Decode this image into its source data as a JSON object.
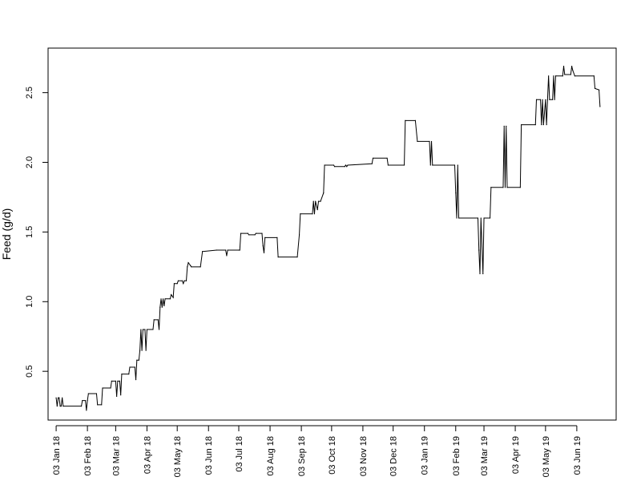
{
  "chart_data": {
    "type": "line",
    "title": "",
    "xlabel": "",
    "ylabel": "Feed (g/d)",
    "grid": false,
    "legend": "none",
    "line_color": "#000000",
    "xlim": [
      "2017-12-26",
      "2019-07-12"
    ],
    "ylim": [
      0.15,
      2.82
    ],
    "x_ticks": [
      {
        "label": "03 Jan 18",
        "date": "2018-01-03"
      },
      {
        "label": "03 Feb 18",
        "date": "2018-02-03"
      },
      {
        "label": "03 Mar 18",
        "date": "2018-03-03"
      },
      {
        "label": "03 Apr 18",
        "date": "2018-04-03"
      },
      {
        "label": "03 May 18",
        "date": "2018-05-03"
      },
      {
        "label": "03 Jun 18",
        "date": "2018-06-03"
      },
      {
        "label": "03 Jul 18",
        "date": "2018-07-03"
      },
      {
        "label": "03 Aug 18",
        "date": "2018-08-03"
      },
      {
        "label": "03 Sep 18",
        "date": "2018-09-03"
      },
      {
        "label": "03 Oct 18",
        "date": "2018-10-03"
      },
      {
        "label": "03 Nov 18",
        "date": "2018-11-03"
      },
      {
        "label": "03 Dec 18",
        "date": "2018-12-03"
      },
      {
        "label": "03 Jan 19",
        "date": "2019-01-03"
      },
      {
        "label": "03 Feb 19",
        "date": "2019-02-03"
      },
      {
        "label": "03 Mar 19",
        "date": "2019-03-03"
      },
      {
        "label": "03 Apr 19",
        "date": "2019-04-03"
      },
      {
        "label": "03 May 19",
        "date": "2019-05-03"
      },
      {
        "label": "03 Jun 19",
        "date": "2019-06-03"
      }
    ],
    "y_ticks": [
      {
        "label": "0.5",
        "value": 0.5
      },
      {
        "label": "1.0",
        "value": 1.0
      },
      {
        "label": "1.5",
        "value": 1.5
      },
      {
        "label": "2.0",
        "value": 2.0
      },
      {
        "label": "2.5",
        "value": 2.5
      }
    ],
    "series": [
      {
        "points": [
          [
            "2018-01-03",
            0.31
          ],
          [
            "2018-01-04",
            0.25
          ],
          [
            "2018-01-05",
            0.31
          ],
          [
            "2018-01-06",
            0.31
          ],
          [
            "2018-01-07",
            0.25
          ],
          [
            "2018-01-08",
            0.25
          ],
          [
            "2018-01-09",
            0.31
          ],
          [
            "2018-01-10",
            0.25
          ],
          [
            "2018-01-28",
            0.25
          ],
          [
            "2018-01-29",
            0.29
          ],
          [
            "2018-02-01",
            0.29
          ],
          [
            "2018-02-02",
            0.22
          ],
          [
            "2018-02-03",
            0.29
          ],
          [
            "2018-02-04",
            0.34
          ],
          [
            "2018-02-12",
            0.34
          ],
          [
            "2018-02-13",
            0.26
          ],
          [
            "2018-02-17",
            0.26
          ],
          [
            "2018-02-18",
            0.38
          ],
          [
            "2018-02-26",
            0.38
          ],
          [
            "2018-02-27",
            0.43
          ],
          [
            "2018-03-03",
            0.43
          ],
          [
            "2018-03-04",
            0.32
          ],
          [
            "2018-03-05",
            0.43
          ],
          [
            "2018-03-07",
            0.43
          ],
          [
            "2018-03-08",
            0.33
          ],
          [
            "2018-03-09",
            0.48
          ],
          [
            "2018-03-16",
            0.48
          ],
          [
            "2018-03-17",
            0.53
          ],
          [
            "2018-03-22",
            0.53
          ],
          [
            "2018-03-23",
            0.44
          ],
          [
            "2018-03-24",
            0.58
          ],
          [
            "2018-03-26",
            0.58
          ],
          [
            "2018-03-27",
            0.65
          ],
          [
            "2018-03-28",
            0.8
          ],
          [
            "2018-03-29",
            0.65
          ],
          [
            "2018-03-30",
            0.8
          ],
          [
            "2018-04-01",
            0.8
          ],
          [
            "2018-04-02",
            0.65
          ],
          [
            "2018-04-03",
            0.8
          ],
          [
            "2018-04-09",
            0.8
          ],
          [
            "2018-04-10",
            0.87
          ],
          [
            "2018-04-14",
            0.87
          ],
          [
            "2018-04-15",
            0.8
          ],
          [
            "2018-04-16",
            0.96
          ],
          [
            "2018-04-17",
            1.02
          ],
          [
            "2018-04-18",
            0.96
          ],
          [
            "2018-04-19",
            1.02
          ],
          [
            "2018-04-20",
            0.97
          ],
          [
            "2018-04-21",
            1.02
          ],
          [
            "2018-04-26",
            1.02
          ],
          [
            "2018-04-27",
            1.05
          ],
          [
            "2018-04-29",
            1.03
          ],
          [
            "2018-04-30",
            1.13
          ],
          [
            "2018-05-03",
            1.13
          ],
          [
            "2018-05-04",
            1.15
          ],
          [
            "2018-05-08",
            1.15
          ],
          [
            "2018-05-09",
            1.13
          ],
          [
            "2018-05-10",
            1.15
          ],
          [
            "2018-05-12",
            1.15
          ],
          [
            "2018-05-13",
            1.25
          ],
          [
            "2018-05-14",
            1.28
          ],
          [
            "2018-05-16",
            1.26
          ],
          [
            "2018-05-17",
            1.25
          ],
          [
            "2018-05-26",
            1.25
          ],
          [
            "2018-05-28",
            1.36
          ],
          [
            "2018-06-11",
            1.37
          ],
          [
            "2018-06-20",
            1.37
          ],
          [
            "2018-06-21",
            1.33
          ],
          [
            "2018-06-22",
            1.37
          ],
          [
            "2018-07-03",
            1.37
          ],
          [
            "2018-07-04",
            1.37
          ],
          [
            "2018-07-05",
            1.49
          ],
          [
            "2018-07-12",
            1.49
          ],
          [
            "2018-07-13",
            1.48
          ],
          [
            "2018-07-19",
            1.48
          ],
          [
            "2018-07-20",
            1.49
          ],
          [
            "2018-07-26",
            1.49
          ],
          [
            "2018-07-27",
            1.4
          ],
          [
            "2018-07-28",
            1.35
          ],
          [
            "2018-07-29",
            1.46
          ],
          [
            "2018-08-10",
            1.46
          ],
          [
            "2018-08-11",
            1.32
          ],
          [
            "2018-08-30",
            1.32
          ],
          [
            "2018-09-01",
            1.48
          ],
          [
            "2018-09-02",
            1.63
          ],
          [
            "2018-09-14",
            1.63
          ],
          [
            "2018-09-15",
            1.72
          ],
          [
            "2018-09-16",
            1.63
          ],
          [
            "2018-09-17",
            1.72
          ],
          [
            "2018-09-19",
            1.66
          ],
          [
            "2018-09-20",
            1.72
          ],
          [
            "2018-09-22",
            1.72
          ],
          [
            "2018-09-25",
            1.78
          ],
          [
            "2018-09-26",
            1.98
          ],
          [
            "2018-10-05",
            1.98
          ],
          [
            "2018-10-06",
            1.97
          ],
          [
            "2018-10-16",
            1.97
          ],
          [
            "2018-10-17",
            1.98
          ],
          [
            "2018-10-18",
            1.97
          ],
          [
            "2018-10-19",
            1.98
          ],
          [
            "2018-11-12",
            1.99
          ],
          [
            "2018-11-13",
            2.03
          ],
          [
            "2018-11-27",
            2.03
          ],
          [
            "2018-11-28",
            1.98
          ],
          [
            "2018-12-14",
            1.98
          ],
          [
            "2018-12-15",
            2.3
          ],
          [
            "2018-12-25",
            2.3
          ],
          [
            "2018-12-27",
            2.15
          ],
          [
            "2019-01-08",
            2.15
          ],
          [
            "2019-01-09",
            1.98
          ],
          [
            "2019-01-10",
            2.15
          ],
          [
            "2019-01-11",
            1.98
          ],
          [
            "2019-02-02",
            1.98
          ],
          [
            "2019-02-03",
            1.78
          ],
          [
            "2019-02-04",
            1.6
          ],
          [
            "2019-02-05",
            1.98
          ],
          [
            "2019-02-06",
            1.6
          ],
          [
            "2019-02-25",
            1.6
          ],
          [
            "2019-02-26",
            1.37
          ],
          [
            "2019-02-27",
            1.2
          ],
          [
            "2019-02-28",
            1.6
          ],
          [
            "2019-03-02",
            1.2
          ],
          [
            "2019-03-03",
            1.6
          ],
          [
            "2019-03-09",
            1.6
          ],
          [
            "2019-03-10",
            1.82
          ],
          [
            "2019-03-22",
            1.82
          ],
          [
            "2019-03-23",
            2.26
          ],
          [
            "2019-03-24",
            1.82
          ],
          [
            "2019-03-25",
            2.26
          ],
          [
            "2019-03-26",
            1.82
          ],
          [
            "2019-04-08",
            1.82
          ],
          [
            "2019-04-09",
            2.27
          ],
          [
            "2019-04-23",
            2.27
          ],
          [
            "2019-04-24",
            2.45
          ],
          [
            "2019-04-28",
            2.45
          ],
          [
            "2019-04-29",
            2.27
          ],
          [
            "2019-04-30",
            2.45
          ],
          [
            "2019-05-01",
            2.27
          ],
          [
            "2019-05-03",
            2.45
          ],
          [
            "2019-05-04",
            2.27
          ],
          [
            "2019-05-05",
            2.45
          ],
          [
            "2019-05-06",
            2.62
          ],
          [
            "2019-05-07",
            2.45
          ],
          [
            "2019-05-10",
            2.45
          ],
          [
            "2019-05-11",
            2.62
          ],
          [
            "2019-05-12",
            2.45
          ],
          [
            "2019-05-13",
            2.62
          ],
          [
            "2019-05-20",
            2.62
          ],
          [
            "2019-05-21",
            2.69
          ],
          [
            "2019-05-22",
            2.63
          ],
          [
            "2019-05-28",
            2.63
          ],
          [
            "2019-05-29",
            2.69
          ],
          [
            "2019-05-30",
            2.66
          ],
          [
            "2019-06-01",
            2.62
          ],
          [
            "2019-06-20",
            2.62
          ],
          [
            "2019-06-21",
            2.53
          ],
          [
            "2019-06-25",
            2.52
          ],
          [
            "2019-06-26",
            2.4
          ]
        ]
      }
    ]
  }
}
